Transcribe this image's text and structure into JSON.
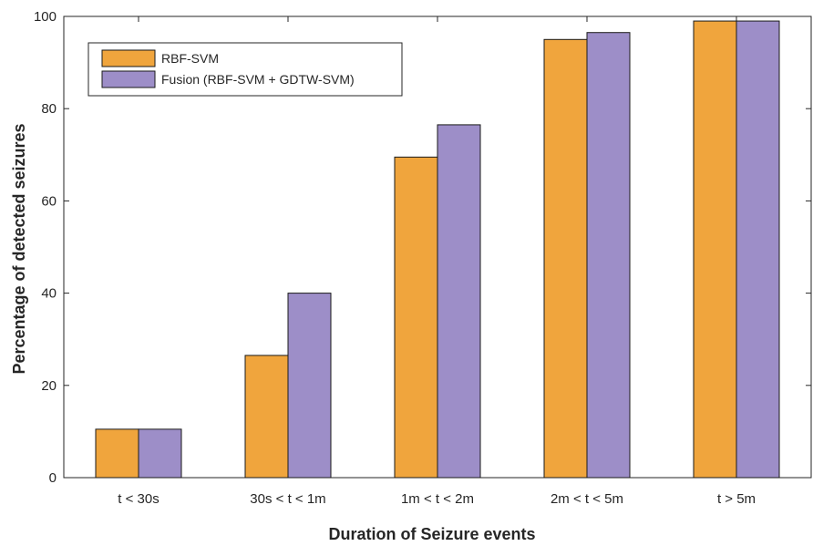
{
  "chart_data": {
    "type": "bar",
    "title": "",
    "xlabel": "Duration of Seizure events",
    "ylabel": "Percentage of detected seizures",
    "categories": [
      "t < 30s",
      "30s < t < 1m",
      "1m < t < 2m",
      "2m < t < 5m",
      "t > 5m"
    ],
    "series": [
      {
        "name": "RBF-SVM",
        "color": "#F0A53D",
        "values": [
          10.5,
          26.5,
          69.5,
          95,
          99
        ]
      },
      {
        "name": "Fusion (RBF-SVM + GDTW-SVM)",
        "color": "#9D8EC8",
        "values": [
          10.5,
          40,
          76.5,
          96.5,
          99
        ]
      }
    ],
    "ylim": [
      0,
      100
    ],
    "yticks": [
      0,
      20,
      40,
      60,
      80,
      100
    ],
    "grid": false,
    "legend_position": "top-left"
  }
}
